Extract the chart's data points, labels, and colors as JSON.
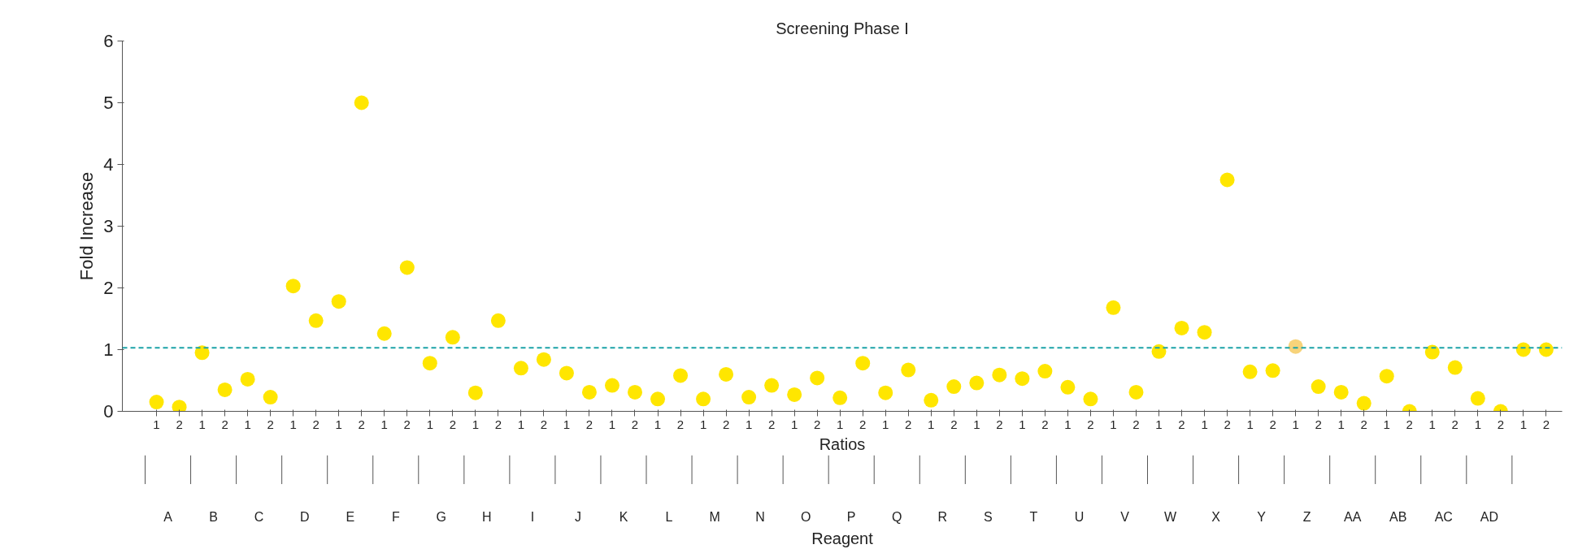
{
  "chart_data": {
    "type": "scatter",
    "title": "Screening Phase I",
    "xlabel": "Ratios",
    "ylabel": "Fold Increase",
    "categories": [
      "1",
      "2",
      "1",
      "2",
      "1",
      "2",
      "1",
      "2",
      "1",
      "2",
      "1",
      "2",
      "1",
      "2",
      "1",
      "2",
      "1",
      "2",
      "1",
      "2",
      "1",
      "2",
      "1",
      "2",
      "1",
      "2",
      "1",
      "2",
      "1",
      "2",
      "1",
      "2",
      "1",
      "2",
      "1",
      "2",
      "1",
      "2",
      "1",
      "2",
      "1",
      "2",
      "1",
      "2",
      "1",
      "2",
      "1",
      "2",
      "1",
      "2",
      "1",
      "2",
      "1",
      "2",
      "1",
      "2",
      "1",
      "2",
      "1",
      "2",
      "1",
      "2"
    ],
    "values": [
      0.15,
      0.07,
      0.95,
      0.35,
      0.52,
      0.23,
      2.03,
      1.47,
      1.78,
      5.0,
      1.26,
      2.33,
      0.78,
      1.2,
      0.3,
      1.47,
      0.7,
      0.84,
      0.62,
      0.31,
      0.42,
      0.31,
      0.2,
      0.58,
      0.2,
      0.6,
      0.23,
      0.42,
      0.27,
      0.54,
      0.22,
      0.78,
      0.3,
      0.67,
      0.18,
      0.4,
      0.46,
      0.59,
      0.53,
      0.65,
      0.39,
      0.2,
      1.68,
      0.31,
      0.97,
      1.35,
      1.28,
      3.75,
      0.64,
      0.66,
      1.05,
      0.4,
      0.31,
      0.13,
      0.57,
      0.0,
      0.96,
      0.71,
      0.21,
      0.0,
      1.0,
      1.0
    ],
    "colors": [
      "#ffe600",
      "#ffe600",
      "#ffe600",
      "#ffe600",
      "#ffe600",
      "#ffe600",
      "#ffe600",
      "#ffe600",
      "#ffe600",
      "#ffe600",
      "#ffe600",
      "#ffe600",
      "#ffe600",
      "#ffe600",
      "#ffe600",
      "#ffe600",
      "#ffe600",
      "#ffe600",
      "#ffe600",
      "#ffe600",
      "#ffe600",
      "#ffe600",
      "#ffe600",
      "#ffe600",
      "#ffe600",
      "#ffe600",
      "#ffe600",
      "#ffe600",
      "#ffe600",
      "#ffe600",
      "#ffe600",
      "#ffe600",
      "#ffe600",
      "#ffe600",
      "#ffe600",
      "#ffe600",
      "#ffe600",
      "#ffe600",
      "#ffe600",
      "#ffe600",
      "#ffe600",
      "#ffe600",
      "#ffe600",
      "#ffe600",
      "#ffe600",
      "#ffe600",
      "#ffe600",
      "#ffe600",
      "#ffe600",
      "#ffe600",
      "#f7d37a",
      "#ffe600",
      "#ffe600",
      "#ffe600",
      "#ffe600",
      "#ffe600",
      "#ffe600",
      "#ffe600",
      "#ffe600",
      "#ffe600",
      "#ffe600",
      "#ffe600"
    ],
    "marker": "circle",
    "ylim": [
      0,
      6
    ],
    "yticks": [
      0,
      1,
      2,
      3,
      4,
      5,
      6
    ],
    "grid": false,
    "ref_lines": [
      {
        "axis": "y",
        "value": 1.03,
        "color": "#1ba3a8",
        "line_style": "dashed"
      }
    ],
    "annotations": [
      "A",
      "B",
      "C",
      "D",
      "E",
      "F",
      "G",
      "H",
      "I",
      "J",
      "K",
      "L",
      "M",
      "N",
      "O",
      "P",
      "Q",
      "R",
      "S",
      "T",
      "U",
      "V",
      "W",
      "X",
      "Y",
      "Z",
      "AA",
      "AB",
      "AC",
      "AD",
      "Reagent"
    ]
  }
}
